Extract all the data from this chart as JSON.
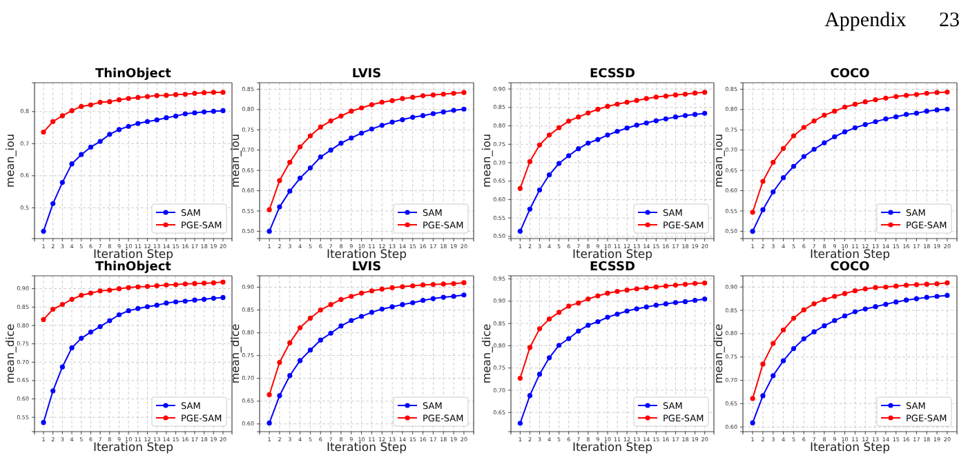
{
  "chart_data": [
    {
      "type": "line",
      "title": "ThinObject",
      "xlabel": "Iteration Step",
      "ylabel": "mean_iou",
      "annotations": [
        "Appendix 23"
      ],
      "x": [
        1,
        2,
        3,
        4,
        5,
        6,
        7,
        8,
        9,
        10,
        11,
        12,
        13,
        14,
        15,
        16,
        17,
        18,
        19,
        20
      ],
      "xlim": [
        0.05,
        20.95
      ],
      "ylim": [
        0.404,
        0.89
      ],
      "xticks": [
        1,
        2,
        3,
        4,
        5,
        6,
        7,
        8,
        9,
        10,
        11,
        12,
        13,
        14,
        15,
        16,
        17,
        18,
        19,
        20
      ],
      "yticks": [
        0.5,
        0.6,
        0.7,
        0.8
      ],
      "grid": true,
      "legend": "bottom right",
      "marker": "circle",
      "line_style": "solid",
      "series": [
        {
          "name": "SAM",
          "color": "#0000ff",
          "values": [
            0.427,
            0.513,
            0.579,
            0.637,
            0.666,
            0.689,
            0.707,
            0.729,
            0.744,
            0.754,
            0.763,
            0.769,
            0.774,
            0.781,
            0.786,
            0.793,
            0.796,
            0.799,
            0.801,
            0.803
          ]
        },
        {
          "name": "PGE-SAM",
          "color": "#ff0000",
          "values": [
            0.736,
            0.769,
            0.787,
            0.803,
            0.816,
            0.821,
            0.829,
            0.831,
            0.837,
            0.841,
            0.844,
            0.847,
            0.85,
            0.851,
            0.853,
            0.854,
            0.857,
            0.859,
            0.86,
            0.86
          ]
        }
      ]
    },
    {
      "type": "line",
      "title": "LVIS",
      "xlabel": "Iteration Step",
      "ylabel": "mean_iou",
      "x": [
        1,
        2,
        3,
        4,
        5,
        6,
        7,
        8,
        9,
        10,
        11,
        12,
        13,
        14,
        15,
        16,
        17,
        18,
        19,
        20
      ],
      "xlim": [
        0.05,
        20.95
      ],
      "ylim": [
        0.482,
        0.866
      ],
      "xticks": [
        1,
        2,
        3,
        4,
        5,
        6,
        7,
        8,
        9,
        10,
        11,
        12,
        13,
        14,
        15,
        16,
        17,
        18,
        19,
        20
      ],
      "yticks": [
        {
          "value": 0.5,
          "label": "0.50"
        },
        0.55,
        {
          "value": 0.6,
          "label": "0.60"
        },
        0.65,
        {
          "value": 0.7,
          "label": "0.70"
        },
        0.75,
        {
          "value": 0.8,
          "label": "0.80"
        },
        0.85
      ],
      "grid": true,
      "legend": "bottom right",
      "marker": "circle",
      "line_style": "solid",
      "series": [
        {
          "name": "SAM",
          "color": "#0000ff",
          "values": [
            0.5,
            0.56,
            0.599,
            0.631,
            0.656,
            0.683,
            0.7,
            0.717,
            0.73,
            0.742,
            0.752,
            0.761,
            0.769,
            0.775,
            0.781,
            0.785,
            0.79,
            0.794,
            0.798,
            0.801
          ]
        },
        {
          "name": "PGE-SAM",
          "color": "#ff0000",
          "values": [
            0.553,
            0.625,
            0.67,
            0.708,
            0.735,
            0.757,
            0.772,
            0.784,
            0.796,
            0.804,
            0.812,
            0.818,
            0.822,
            0.827,
            0.83,
            0.834,
            0.836,
            0.838,
            0.84,
            0.842
          ]
        }
      ]
    },
    {
      "type": "line",
      "title": "ECSSD",
      "xlabel": "Iteration Step",
      "ylabel": "mean_iou",
      "x": [
        1,
        2,
        3,
        4,
        5,
        6,
        7,
        8,
        9,
        10,
        11,
        12,
        13,
        14,
        15,
        16,
        17,
        18,
        19,
        20
      ],
      "xlim": [
        0.05,
        20.95
      ],
      "ylim": [
        0.494,
        0.917
      ],
      "xticks": [
        1,
        2,
        3,
        4,
        5,
        6,
        7,
        8,
        9,
        10,
        11,
        12,
        13,
        14,
        15,
        16,
        17,
        18,
        19,
        20
      ],
      "yticks": [
        {
          "value": 0.5,
          "label": "0.50"
        },
        0.55,
        {
          "value": 0.6,
          "label": "0.60"
        },
        0.65,
        {
          "value": 0.7,
          "label": "0.70"
        },
        0.75,
        {
          "value": 0.8,
          "label": "0.80"
        },
        0.85,
        {
          "value": 0.9,
          "label": "0.90"
        }
      ],
      "grid": true,
      "legend": "bottom right",
      "marker": "circle",
      "line_style": "solid",
      "series": [
        {
          "name": "SAM",
          "color": "#0000ff",
          "values": [
            0.514,
            0.574,
            0.626,
            0.667,
            0.698,
            0.719,
            0.738,
            0.753,
            0.763,
            0.775,
            0.785,
            0.794,
            0.802,
            0.808,
            0.814,
            0.819,
            0.824,
            0.828,
            0.831,
            0.834
          ]
        },
        {
          "name": "PGE-SAM",
          "color": "#ff0000",
          "values": [
            0.63,
            0.703,
            0.748,
            0.775,
            0.795,
            0.813,
            0.824,
            0.835,
            0.845,
            0.853,
            0.859,
            0.864,
            0.869,
            0.874,
            0.878,
            0.881,
            0.884,
            0.886,
            0.889,
            0.891
          ]
        }
      ]
    },
    {
      "type": "line",
      "title": "COCO",
      "xlabel": "Iteration Step",
      "ylabel": "mean_iou",
      "x": [
        1,
        2,
        3,
        4,
        5,
        6,
        7,
        8,
        9,
        10,
        11,
        12,
        13,
        14,
        15,
        16,
        17,
        18,
        19,
        20
      ],
      "xlim": [
        0.05,
        20.95
      ],
      "ylim": [
        0.482,
        0.866
      ],
      "xticks": [
        1,
        2,
        3,
        4,
        5,
        6,
        7,
        8,
        9,
        10,
        11,
        12,
        13,
        14,
        15,
        16,
        17,
        18,
        19,
        20
      ],
      "yticks": [
        {
          "value": 0.5,
          "label": "0.50"
        },
        0.55,
        {
          "value": 0.6,
          "label": "0.60"
        },
        0.65,
        {
          "value": 0.7,
          "label": "0.70"
        },
        0.75,
        {
          "value": 0.8,
          "label": "0.80"
        },
        0.85
      ],
      "grid": true,
      "legend": "bottom right",
      "marker": "circle",
      "line_style": "solid",
      "series": [
        {
          "name": "SAM",
          "color": "#0000ff",
          "values": [
            0.5,
            0.553,
            0.597,
            0.632,
            0.66,
            0.684,
            0.702,
            0.718,
            0.733,
            0.745,
            0.755,
            0.763,
            0.77,
            0.777,
            0.782,
            0.788,
            0.791,
            0.796,
            0.799,
            0.801
          ]
        },
        {
          "name": "PGE-SAM",
          "color": "#ff0000",
          "values": [
            0.547,
            0.623,
            0.67,
            0.704,
            0.735,
            0.756,
            0.772,
            0.786,
            0.796,
            0.806,
            0.813,
            0.819,
            0.824,
            0.828,
            0.832,
            0.835,
            0.837,
            0.84,
            0.842,
            0.843
          ]
        }
      ]
    },
    {
      "type": "line",
      "title": "ThinObject",
      "xlabel": "Iteration Step",
      "ylabel": "mean_dice",
      "x": [
        1,
        2,
        3,
        4,
        5,
        6,
        7,
        8,
        9,
        10,
        11,
        12,
        13,
        14,
        15,
        16,
        17,
        18,
        19,
        20
      ],
      "xlim": [
        0.05,
        20.95
      ],
      "ylim": [
        0.511,
        0.935
      ],
      "xticks": [
        1,
        2,
        3,
        4,
        5,
        6,
        7,
        8,
        9,
        10,
        11,
        12,
        13,
        14,
        15,
        16,
        17,
        18,
        19,
        20
      ],
      "yticks": [
        0.55,
        {
          "value": 0.6,
          "label": "0.60"
        },
        0.65,
        {
          "value": 0.7,
          "label": "0.70"
        },
        0.75,
        {
          "value": 0.8,
          "label": "0.80"
        },
        0.85,
        {
          "value": 0.9,
          "label": "0.90"
        }
      ],
      "grid": true,
      "legend": "bottom right",
      "marker": "circle",
      "line_style": "solid",
      "series": [
        {
          "name": "SAM",
          "color": "#0000ff",
          "values": [
            0.536,
            0.622,
            0.687,
            0.739,
            0.765,
            0.782,
            0.797,
            0.813,
            0.829,
            0.84,
            0.846,
            0.851,
            0.855,
            0.861,
            0.864,
            0.866,
            0.869,
            0.871,
            0.874,
            0.876
          ]
        },
        {
          "name": "PGE-SAM",
          "color": "#ff0000",
          "values": [
            0.816,
            0.844,
            0.857,
            0.871,
            0.882,
            0.888,
            0.894,
            0.896,
            0.9,
            0.903,
            0.905,
            0.906,
            0.908,
            0.91,
            0.911,
            0.913,
            0.914,
            0.915,
            0.916,
            0.918
          ]
        }
      ]
    },
    {
      "type": "line",
      "title": "LVIS",
      "xlabel": "Iteration Step",
      "ylabel": "mean_dice",
      "x": [
        1,
        2,
        3,
        4,
        5,
        6,
        7,
        8,
        9,
        10,
        11,
        12,
        13,
        14,
        15,
        16,
        17,
        18,
        19,
        20
      ],
      "xlim": [
        0.05,
        20.95
      ],
      "ylim": [
        0.583,
        0.925
      ],
      "xticks": [
        1,
        2,
        3,
        4,
        5,
        6,
        7,
        8,
        9,
        10,
        11,
        12,
        13,
        14,
        15,
        16,
        17,
        18,
        19,
        20
      ],
      "yticks": [
        {
          "value": 0.6,
          "label": "0.60"
        },
        0.65,
        {
          "value": 0.7,
          "label": "0.70"
        },
        0.75,
        {
          "value": 0.8,
          "label": "0.80"
        },
        0.85,
        {
          "value": 0.9,
          "label": "0.90"
        }
      ],
      "grid": true,
      "legend": "bottom right",
      "marker": "circle",
      "line_style": "solid",
      "series": [
        {
          "name": "SAM",
          "color": "#0000ff",
          "values": [
            0.602,
            0.662,
            0.706,
            0.739,
            0.762,
            0.784,
            0.799,
            0.815,
            0.827,
            0.836,
            0.845,
            0.852,
            0.857,
            0.862,
            0.866,
            0.871,
            0.875,
            0.878,
            0.88,
            0.883
          ]
        },
        {
          "name": "PGE-SAM",
          "color": "#ff0000",
          "values": [
            0.664,
            0.735,
            0.778,
            0.811,
            0.832,
            0.85,
            0.862,
            0.873,
            0.88,
            0.887,
            0.892,
            0.896,
            0.899,
            0.901,
            0.903,
            0.905,
            0.906,
            0.907,
            0.908,
            0.91
          ]
        }
      ]
    },
    {
      "type": "line",
      "title": "ECSSD",
      "xlabel": "Iteration Step",
      "ylabel": "mean_dice",
      "x": [
        1,
        2,
        3,
        4,
        5,
        6,
        7,
        8,
        9,
        10,
        11,
        12,
        13,
        14,
        15,
        16,
        17,
        18,
        19,
        20
      ],
      "xlim": [
        0.05,
        20.95
      ],
      "ylim": [
        0.607,
        0.957
      ],
      "xticks": [
        1,
        2,
        3,
        4,
        5,
        6,
        7,
        8,
        9,
        10,
        11,
        12,
        13,
        14,
        15,
        16,
        17,
        18,
        19,
        20
      ],
      "yticks": [
        0.65,
        {
          "value": 0.7,
          "label": "0.70"
        },
        0.75,
        {
          "value": 0.8,
          "label": "0.80"
        },
        0.85,
        {
          "value": 0.9,
          "label": "0.90"
        },
        0.95
      ],
      "grid": true,
      "legend": "bottom right",
      "marker": "circle",
      "line_style": "solid",
      "series": [
        {
          "name": "SAM",
          "color": "#0000ff",
          "values": [
            0.626,
            0.688,
            0.736,
            0.773,
            0.801,
            0.816,
            0.833,
            0.846,
            0.854,
            0.864,
            0.871,
            0.878,
            0.883,
            0.887,
            0.891,
            0.894,
            0.897,
            0.899,
            0.902,
            0.905
          ]
        },
        {
          "name": "PGE-SAM",
          "color": "#ff0000",
          "values": [
            0.727,
            0.796,
            0.838,
            0.86,
            0.875,
            0.889,
            0.896,
            0.905,
            0.912,
            0.918,
            0.922,
            0.925,
            0.928,
            0.93,
            0.932,
            0.934,
            0.936,
            0.938,
            0.94,
            0.941
          ]
        }
      ]
    },
    {
      "type": "line",
      "title": "COCO",
      "xlabel": "Iteration Step",
      "ylabel": "mean_dice",
      "x": [
        1,
        2,
        3,
        4,
        5,
        6,
        7,
        8,
        9,
        10,
        11,
        12,
        13,
        14,
        15,
        16,
        17,
        18,
        19,
        20
      ],
      "xlim": [
        0.05,
        20.95
      ],
      "ylim": [
        0.59,
        0.924
      ],
      "xticks": [
        1,
        2,
        3,
        4,
        5,
        6,
        7,
        8,
        9,
        10,
        11,
        12,
        13,
        14,
        15,
        16,
        17,
        18,
        19,
        20
      ],
      "yticks": [
        {
          "value": 0.6,
          "label": "0.60"
        },
        0.65,
        {
          "value": 0.7,
          "label": "0.70"
        },
        0.75,
        {
          "value": 0.8,
          "label": "0.80"
        },
        0.85,
        {
          "value": 0.9,
          "label": "0.90"
        }
      ],
      "grid": true,
      "legend": "bottom right",
      "marker": "circle",
      "line_style": "solid",
      "series": [
        {
          "name": "SAM",
          "color": "#0000ff",
          "values": [
            0.609,
            0.667,
            0.71,
            0.742,
            0.768,
            0.789,
            0.804,
            0.817,
            0.828,
            0.838,
            0.847,
            0.853,
            0.858,
            0.863,
            0.868,
            0.872,
            0.875,
            0.878,
            0.88,
            0.882
          ]
        },
        {
          "name": "PGE-SAM",
          "color": "#ff0000",
          "values": [
            0.661,
            0.735,
            0.779,
            0.808,
            0.833,
            0.851,
            0.864,
            0.873,
            0.88,
            0.886,
            0.892,
            0.896,
            0.899,
            0.9,
            0.902,
            0.904,
            0.905,
            0.906,
            0.907,
            0.909
          ]
        }
      ]
    }
  ]
}
